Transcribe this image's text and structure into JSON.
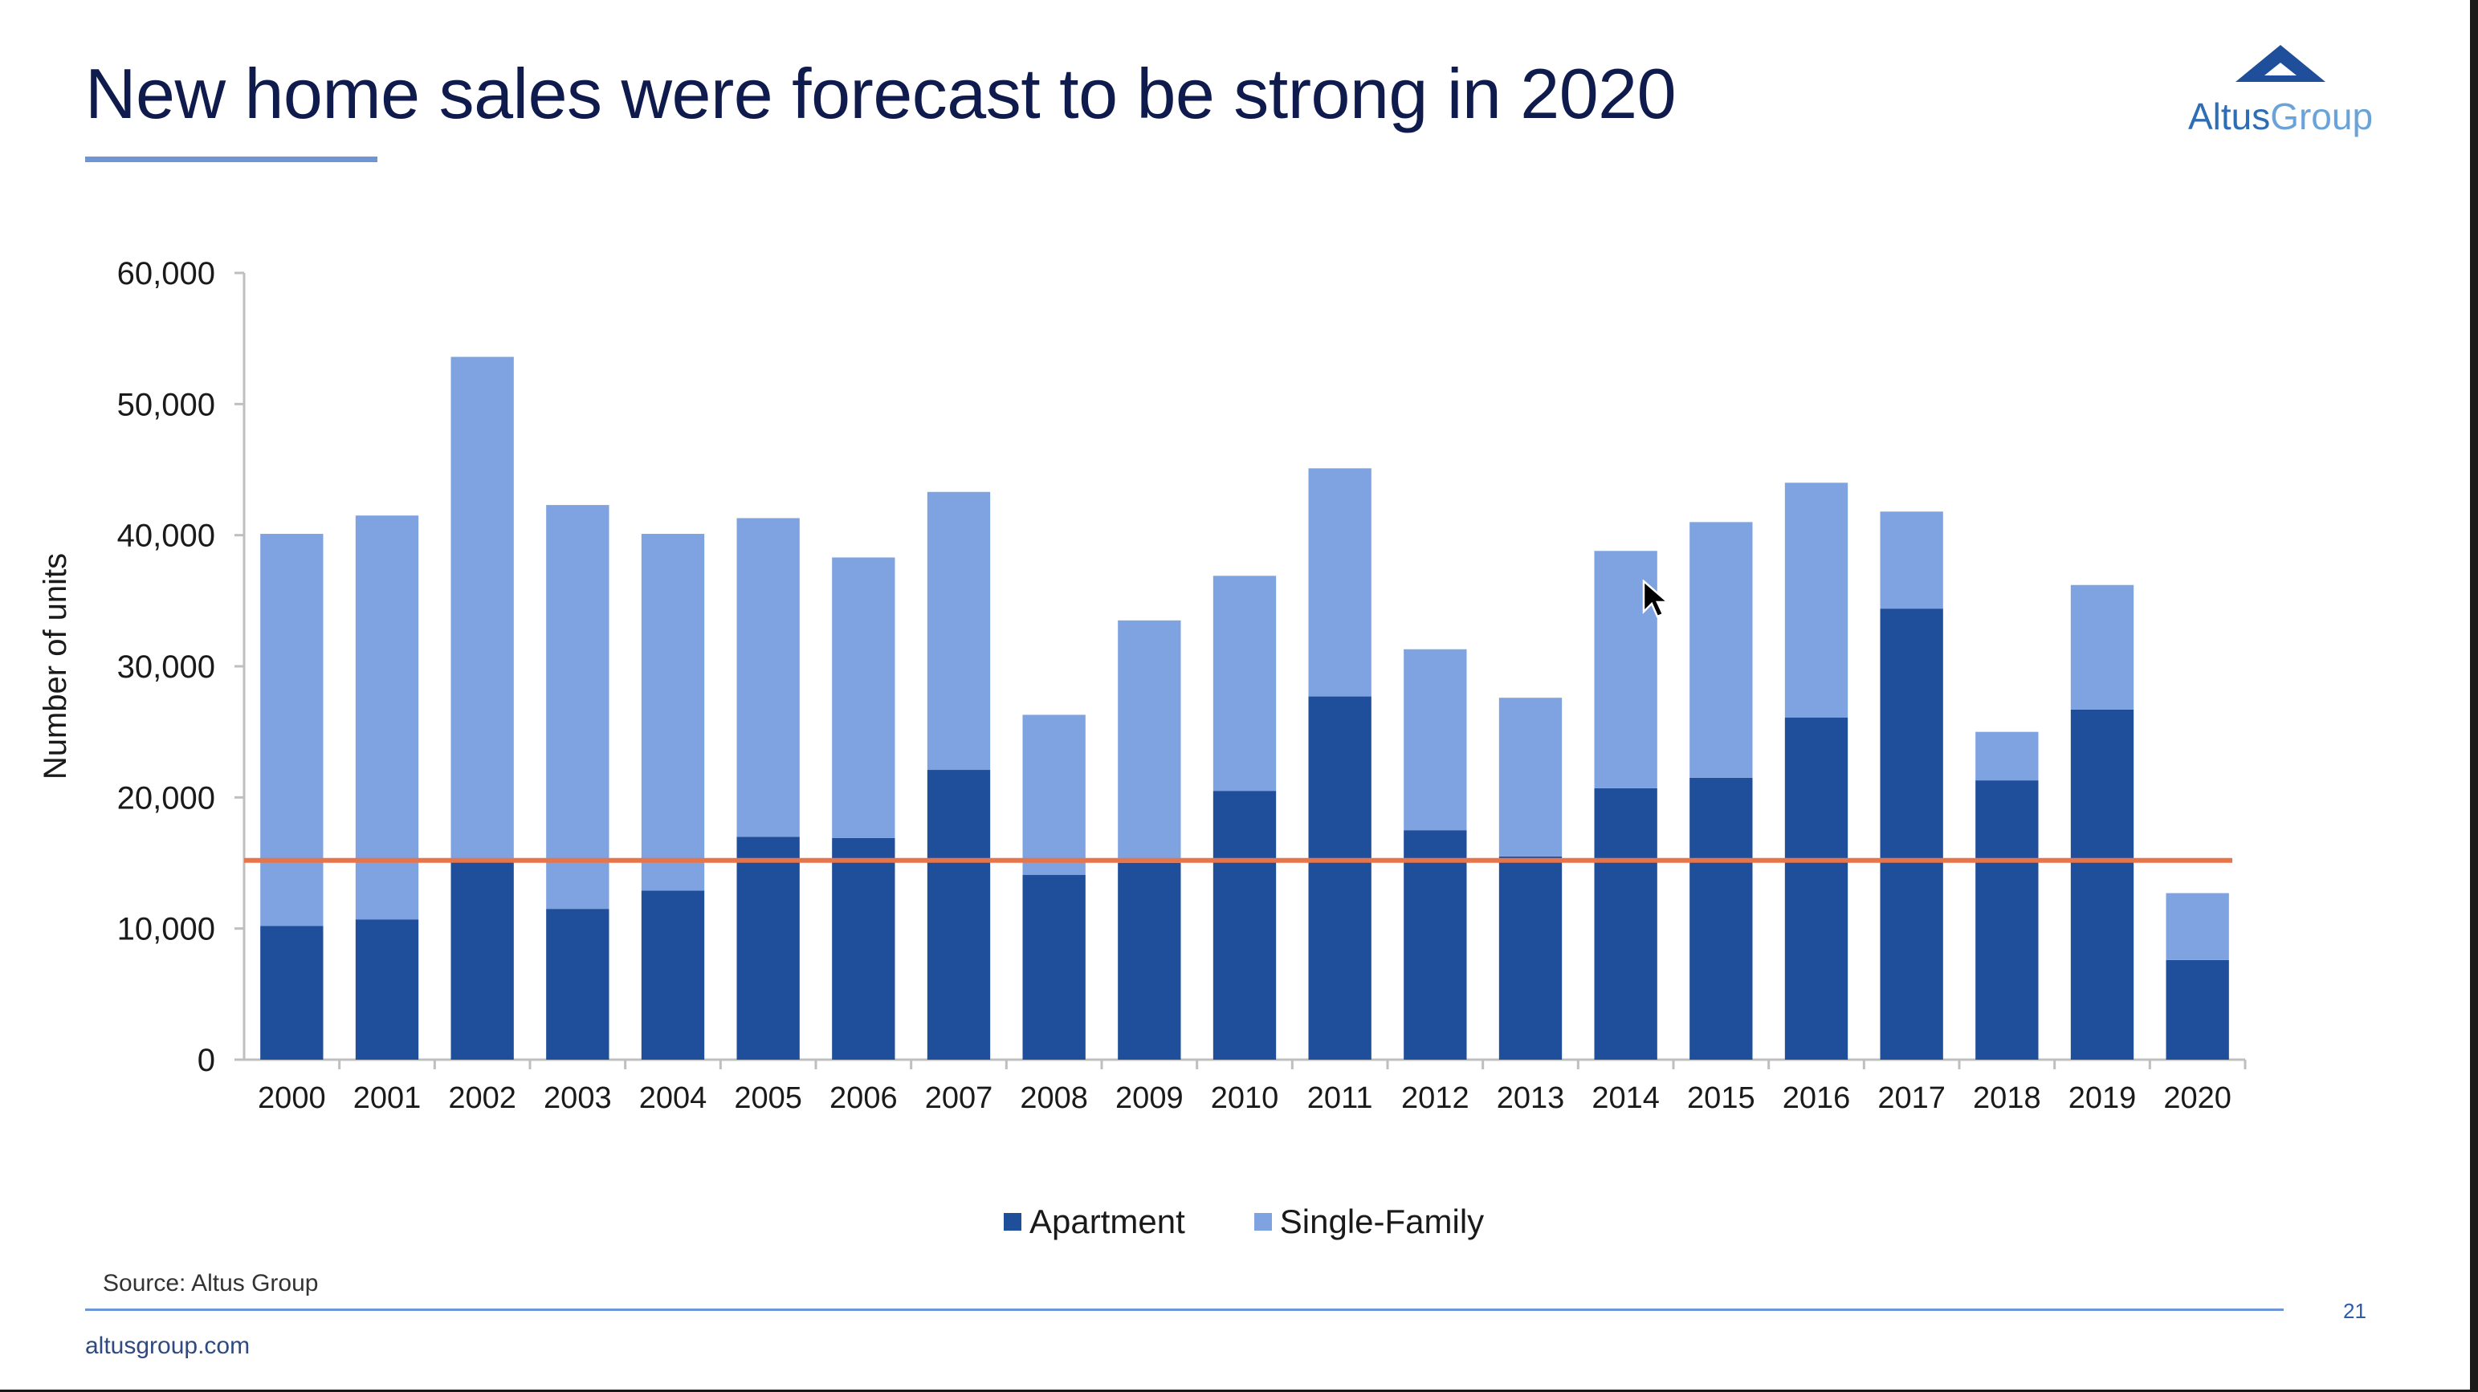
{
  "slide": {
    "title": "New home sales were forecast to be strong in 2020",
    "logo_primary": "Altus",
    "logo_secondary": "Group",
    "source": "Source: Altus Group",
    "page_number": "21",
    "url": "altusgroup.com"
  },
  "colors": {
    "apartment": "#1f4e9a",
    "single_family": "#7ea3e0",
    "reference_line": "#e8744a",
    "title": "#0f1a4d",
    "accent": "#6f95d5"
  },
  "chart_data": {
    "type": "bar",
    "stacked": true,
    "title": "",
    "xlabel": "",
    "ylabel": "Number of units",
    "ylim": [
      0,
      60000
    ],
    "yticks": [
      0,
      10000,
      20000,
      30000,
      40000,
      50000,
      60000
    ],
    "ytick_labels": [
      "0",
      "10,000",
      "20,000",
      "30,000",
      "40,000",
      "50,000",
      "60,000"
    ],
    "grid": false,
    "legend_position": "bottom",
    "categories": [
      "2000",
      "2001",
      "2002",
      "2003",
      "2004",
      "2005",
      "2006",
      "2007",
      "2008",
      "2009",
      "2010",
      "2011",
      "2012",
      "2013",
      "2014",
      "2015",
      "2016",
      "2017",
      "2018",
      "2019",
      "2020"
    ],
    "series": [
      {
        "name": "Apartment",
        "values": [
          10200,
          10700,
          15100,
          11500,
          12900,
          17000,
          16900,
          22100,
          14100,
          15000,
          20500,
          27700,
          17500,
          15500,
          20700,
          21500,
          26100,
          34400,
          21300,
          26700,
          7600
        ]
      },
      {
        "name": "Single-Family",
        "values": [
          29900,
          30800,
          38500,
          30800,
          27200,
          24300,
          21400,
          21200,
          12200,
          18500,
          16400,
          17400,
          13800,
          12100,
          18100,
          19500,
          17900,
          7400,
          3700,
          9500,
          5100
        ]
      }
    ],
    "reference_line": {
      "value": 15200
    }
  }
}
